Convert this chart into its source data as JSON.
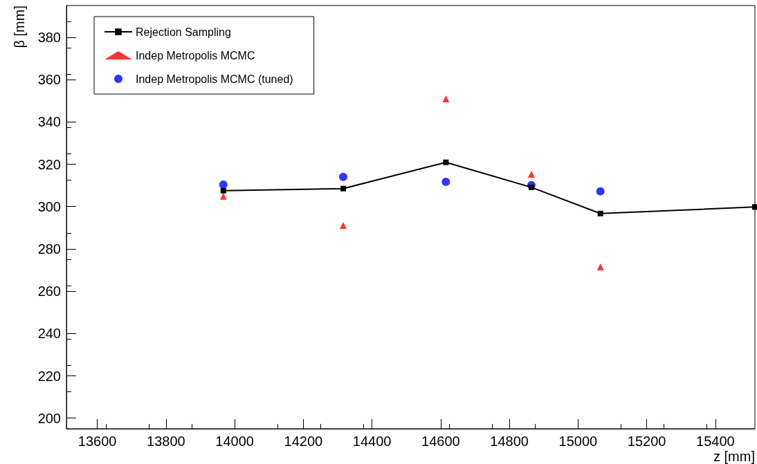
{
  "chart_data": {
    "type": "scatter",
    "xlabel": "z [mm]",
    "ylabel": "β [mm]",
    "xlim": [
      13510,
      15515
    ],
    "xticks": [
      13600,
      13800,
      14000,
      14200,
      14400,
      14600,
      14800,
      15000,
      15200,
      15400
    ],
    "ylim": [
      195,
      395
    ],
    "yticks": [
      200,
      220,
      240,
      260,
      280,
      300,
      320,
      340,
      360,
      380
    ],
    "grid": false,
    "legend": "top left",
    "series": [
      {
        "name": "Rejection Sampling",
        "type": "line",
        "color": "#000000",
        "marker": "square",
        "x": [
          13967,
          14316,
          14615,
          14864,
          15065,
          15515
        ],
        "values": [
          307.5,
          308.5,
          320.9,
          309.1,
          296.7,
          299.8
        ]
      },
      {
        "name": "Indep Metropolis MCMC",
        "color": "#ff0000",
        "marker": "triangle",
        "x": [
          13967,
          14316,
          14615,
          14864,
          15065
        ],
        "values": [
          304.9,
          291.1,
          350.9,
          315.3,
          271.5
        ]
      },
      {
        "name": "Indep Metropolis MCMC (tuned)",
        "color": "#0000ff",
        "marker": "circle",
        "x": [
          13967,
          14316,
          14615,
          14864,
          15065
        ],
        "values": [
          310.4,
          314.0,
          311.7,
          310.1,
          307.2
        ]
      }
    ]
  }
}
